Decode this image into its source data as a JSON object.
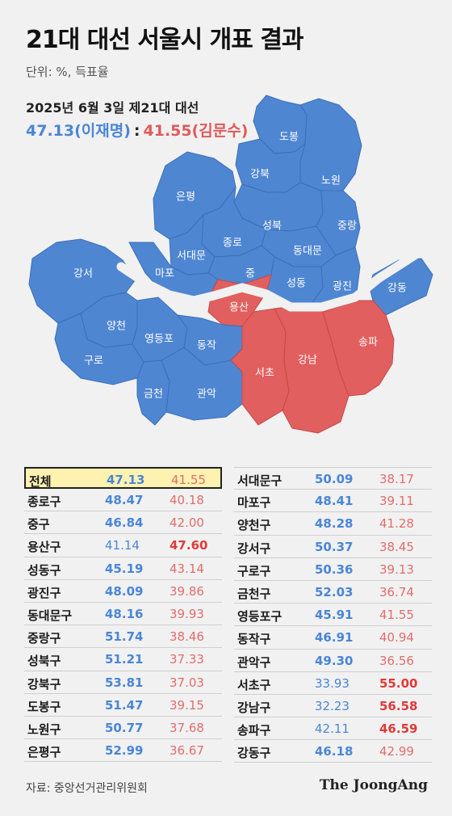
{
  "title": "21대 대선 서울시 개표 결과",
  "unit": "단위: %, 득표율",
  "date": "2025년 6월 3일 제21대 대선",
  "share": {
    "lee": "47.13(이재명)",
    "sep": ":",
    "kim": "41.55(김문수)"
  },
  "colors": {
    "lee": "#4f86d2",
    "kim": "#e25f5f"
  },
  "map_labels": {
    "dobong": "도봉",
    "gangbuk": "강북",
    "nowon": "노원",
    "eunpyeong": "은평",
    "seongbuk": "성북",
    "jungnang": "중랑",
    "jongno": "종로",
    "seodaemun": "서대문",
    "dongdaemun": "동대문",
    "gangseo": "강서",
    "mapo": "마포",
    "jung": "중",
    "seongdong": "성동",
    "gwangjin": "광진",
    "gangdong": "강동",
    "yongsan": "용산",
    "yangcheon": "양천",
    "yeongdeungpo": "영등포",
    "dongjak": "동작",
    "gangnam": "강남",
    "songpa": "송파",
    "guro": "구로",
    "seocho": "서초",
    "geumcheon": "금천",
    "gwanak": "관악"
  },
  "table_left": [
    {
      "name": "전체",
      "lee": "47.13",
      "kim": "41.55"
    },
    {
      "name": "종로구",
      "lee": "48.47",
      "kim": "40.18"
    },
    {
      "name": "중구",
      "lee": "46.84",
      "kim": "42.00"
    },
    {
      "name": "용산구",
      "lee": "41.14",
      "kim": "47.60"
    },
    {
      "name": "성동구",
      "lee": "45.19",
      "kim": "43.14"
    },
    {
      "name": "광진구",
      "lee": "48.09",
      "kim": "39.86"
    },
    {
      "name": "동대문구",
      "lee": "48.16",
      "kim": "39.93"
    },
    {
      "name": "중랑구",
      "lee": "51.74",
      "kim": "38.46"
    },
    {
      "name": "성북구",
      "lee": "51.21",
      "kim": "37.33"
    },
    {
      "name": "강북구",
      "lee": "53.81",
      "kim": "37.03"
    },
    {
      "name": "도봉구",
      "lee": "51.47",
      "kim": "39.15"
    },
    {
      "name": "노원구",
      "lee": "50.77",
      "kim": "37.68"
    },
    {
      "name": "은평구",
      "lee": "52.99",
      "kim": "36.67"
    }
  ],
  "table_right": [
    {
      "name": "서대문구",
      "lee": "50.09",
      "kim": "38.17"
    },
    {
      "name": "마포구",
      "lee": "48.41",
      "kim": "39.11"
    },
    {
      "name": "양천구",
      "lee": "48.28",
      "kim": "41.28"
    },
    {
      "name": "강서구",
      "lee": "50.37",
      "kim": "38.45"
    },
    {
      "name": "구로구",
      "lee": "50.36",
      "kim": "39.13"
    },
    {
      "name": "금천구",
      "lee": "52.03",
      "kim": "36.74"
    },
    {
      "name": "영등포구",
      "lee": "45.91",
      "kim": "41.55"
    },
    {
      "name": "동작구",
      "lee": "46.91",
      "kim": "40.94"
    },
    {
      "name": "관악구",
      "lee": "49.30",
      "kim": "36.56"
    },
    {
      "name": "서초구",
      "lee": "33.93",
      "kim": "55.00"
    },
    {
      "name": "강남구",
      "lee": "32.23",
      "kim": "56.58"
    },
    {
      "name": "송파구",
      "lee": "42.11",
      "kim": "46.59"
    },
    {
      "name": "강동구",
      "lee": "46.18",
      "kim": "42.99"
    }
  ],
  "source": "자료: 중앙선거관리위원회",
  "brand": "The JoongAng"
}
